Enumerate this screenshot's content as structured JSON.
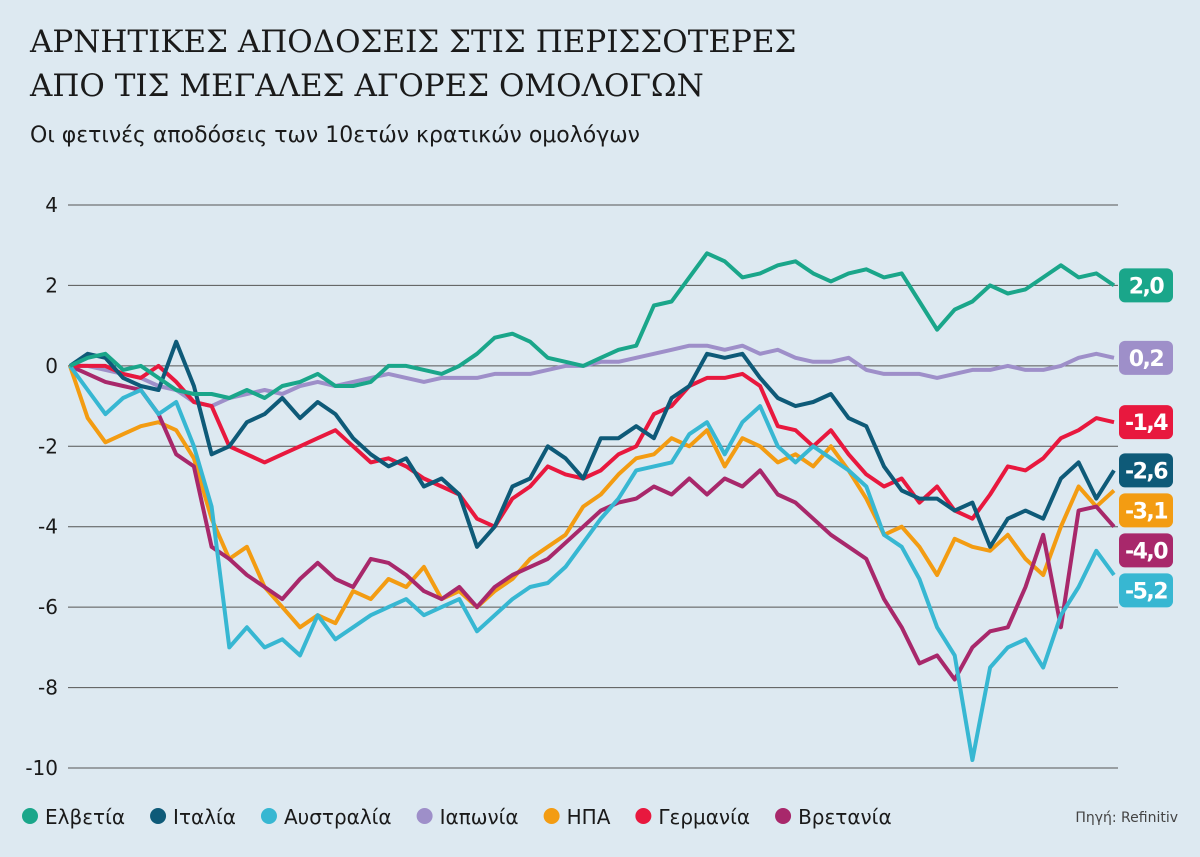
{
  "chart_data": {
    "type": "line",
    "title": "ΑΡΝΗΤΙΚΕΣ ΑΠΟΔΟΣΕΙΣ ΣΤΙΣ ΠΕΡΙΣΣΟΤΕΡΕΣ",
    "title_line2": "ΑΠΟ ΤΙΣ ΜΕΓΑΛΕΣ ΑΓΟΡΕΣ ΟΜΟΛΟΓΩΝ",
    "subtitle": "Οι φετινές αποδόσεις των 10ετών κρατικών ομολόγων",
    "source": "Πηγή: Refinitiv",
    "ylim": [
      -10,
      4.2
    ],
    "yticks": [
      4,
      2,
      0,
      -2,
      -4,
      -6,
      -8,
      -10
    ],
    "grid": true,
    "series": [
      {
        "name": "Ελβετία",
        "color": "#1aa68a",
        "values": [
          0,
          0.2,
          0.3,
          -0.1,
          0,
          -0.3,
          -0.6,
          -0.7,
          -0.7,
          -0.8,
          -0.6,
          -0.8,
          -0.5,
          -0.4,
          -0.2,
          -0.5,
          -0.5,
          -0.4,
          0,
          0,
          -0.1,
          -0.2,
          0,
          0.3,
          0.7,
          0.8,
          0.6,
          0.2,
          0.1,
          0,
          0.2,
          0.4,
          0.5,
          1.5,
          1.6,
          2.2,
          2.8,
          2.6,
          2.2,
          2.3,
          2.5,
          2.6,
          2.3,
          2.1,
          2.3,
          2.4,
          2.2,
          2.3,
          1.6,
          0.9,
          1.4,
          1.6,
          2.0,
          1.8,
          1.9,
          2.2,
          2.5,
          2.2,
          2.3,
          2.0
        ],
        "value_labels": [
          null,
          null,
          null,
          null,
          null,
          null,
          null,
          null,
          null,
          null,
          null,
          null,
          null,
          null,
          null,
          null,
          null,
          null,
          null,
          null,
          null,
          null,
          null,
          null,
          null,
          null,
          null,
          null,
          null,
          null,
          null,
          null,
          null,
          null,
          null,
          null,
          null,
          null,
          null,
          null,
          null,
          null,
          null,
          null,
          null,
          null,
          null,
          null,
          null,
          null,
          null,
          null,
          null,
          null,
          null,
          null,
          null,
          null,
          null,
          "2,0"
        ]
      },
      {
        "name": "Ιταλία",
        "color": "#0e5a78",
        "values": [
          0,
          0.3,
          0.2,
          -0.3,
          -0.5,
          -0.6,
          0.6,
          -0.5,
          -2.2,
          -2.0,
          -1.4,
          -1.2,
          -0.8,
          -1.3,
          -0.9,
          -1.2,
          -1.8,
          -2.2,
          -2.5,
          -2.3,
          -3.0,
          -2.8,
          -3.2,
          -4.5,
          -4.0,
          -3.0,
          -2.8,
          -2.0,
          -2.3,
          -2.8,
          -1.8,
          -1.8,
          -1.5,
          -1.8,
          -0.8,
          -0.5,
          0.3,
          0.2,
          0.3,
          -0.3,
          -0.8,
          -1.0,
          -0.9,
          -0.7,
          -1.3,
          -1.5,
          -2.5,
          -3.1,
          -3.3,
          -3.3,
          -3.6,
          -3.4,
          -4.5,
          -3.8,
          -3.6,
          -3.8,
          -2.8,
          -2.4,
          -3.3,
          -2.6
        ],
        "value_labels": [
          null,
          null,
          null,
          null,
          null,
          null,
          null,
          null,
          null,
          null,
          null,
          null,
          null,
          null,
          null,
          null,
          null,
          null,
          null,
          null,
          null,
          null,
          null,
          null,
          null,
          null,
          null,
          null,
          null,
          null,
          null,
          null,
          null,
          null,
          null,
          null,
          null,
          null,
          null,
          null,
          null,
          null,
          null,
          null,
          null,
          null,
          null,
          null,
          null,
          null,
          null,
          null,
          null,
          null,
          null,
          null,
          null,
          null,
          null,
          "-2,6"
        ]
      },
      {
        "name": "Αυστραλία",
        "color": "#37b7d2",
        "values": [
          0,
          -0.6,
          -1.2,
          -0.8,
          -0.6,
          -1.2,
          -0.9,
          -2.0,
          -3.5,
          -7.0,
          -6.5,
          -7.0,
          -6.8,
          -7.2,
          -6.2,
          -6.8,
          -6.5,
          -6.2,
          -6.0,
          -5.8,
          -6.2,
          -6.0,
          -5.8,
          -6.6,
          -6.2,
          -5.8,
          -5.5,
          -5.4,
          -5.0,
          -4.4,
          -3.8,
          -3.3,
          -2.6,
          -2.5,
          -2.4,
          -1.7,
          -1.4,
          -2.2,
          -1.4,
          -1.0,
          -2.0,
          -2.4,
          -2.0,
          -2.3,
          -2.6,
          -3.0,
          -4.2,
          -4.5,
          -5.3,
          -6.5,
          -7.2,
          -9.8,
          -7.5,
          -7.0,
          -6.8,
          -7.5,
          -6.2,
          -5.5,
          -4.6,
          -5.2
        ],
        "value_labels": [
          null,
          null,
          null,
          null,
          null,
          null,
          null,
          null,
          null,
          null,
          null,
          null,
          null,
          null,
          null,
          null,
          null,
          null,
          null,
          null,
          null,
          null,
          null,
          null,
          null,
          null,
          null,
          null,
          null,
          null,
          null,
          null,
          null,
          null,
          null,
          null,
          null,
          null,
          null,
          null,
          null,
          null,
          null,
          null,
          null,
          null,
          null,
          null,
          null,
          null,
          null,
          null,
          null,
          null,
          null,
          null,
          null,
          null,
          null,
          "-5,2"
        ]
      },
      {
        "name": "Ιαπωνία",
        "color": "#9e8fc9",
        "values": [
          0,
          0,
          -0.1,
          -0.2,
          -0.3,
          -0.5,
          -0.6,
          -0.9,
          -1.0,
          -0.8,
          -0.7,
          -0.6,
          -0.7,
          -0.5,
          -0.4,
          -0.5,
          -0.4,
          -0.3,
          -0.2,
          -0.3,
          -0.4,
          -0.3,
          -0.3,
          -0.3,
          -0.2,
          -0.2,
          -0.2,
          -0.1,
          0,
          0,
          0.1,
          0.1,
          0.2,
          0.3,
          0.4,
          0.5,
          0.5,
          0.4,
          0.5,
          0.3,
          0.4,
          0.2,
          0.1,
          0.1,
          0.2,
          -0.1,
          -0.2,
          -0.2,
          -0.2,
          -0.3,
          -0.2,
          -0.1,
          -0.1,
          0,
          -0.1,
          -0.1,
          0,
          0.2,
          0.3,
          0.2
        ],
        "value_labels": [
          null,
          null,
          null,
          null,
          null,
          null,
          null,
          null,
          null,
          null,
          null,
          null,
          null,
          null,
          null,
          null,
          null,
          null,
          null,
          null,
          null,
          null,
          null,
          null,
          null,
          null,
          null,
          null,
          null,
          null,
          null,
          null,
          null,
          null,
          null,
          null,
          null,
          null,
          null,
          null,
          null,
          null,
          null,
          null,
          null,
          null,
          null,
          null,
          null,
          null,
          null,
          null,
          null,
          null,
          null,
          null,
          null,
          null,
          null,
          "0,2"
        ]
      },
      {
        "name": "ΗΠΑ",
        "color": "#f39c12",
        "values": [
          0,
          -1.3,
          -1.9,
          -1.7,
          -1.5,
          -1.4,
          -1.6,
          -2.3,
          -3.8,
          -4.8,
          -4.5,
          -5.5,
          -6.0,
          -6.5,
          -6.2,
          -6.4,
          -5.6,
          -5.8,
          -5.3,
          -5.5,
          -5.0,
          -5.8,
          -5.6,
          -6.0,
          -5.6,
          -5.3,
          -4.8,
          -4.5,
          -4.2,
          -3.5,
          -3.2,
          -2.7,
          -2.3,
          -2.2,
          -1.8,
          -2.0,
          -1.6,
          -2.5,
          -1.8,
          -2.0,
          -2.4,
          -2.2,
          -2.5,
          -2.0,
          -2.6,
          -3.3,
          -4.2,
          -4.0,
          -4.5,
          -5.2,
          -4.3,
          -4.5,
          -4.6,
          -4.2,
          -4.8,
          -5.2,
          -4.0,
          -3.0,
          -3.5,
          -3.1
        ],
        "value_labels": [
          null,
          null,
          null,
          null,
          null,
          null,
          null,
          null,
          null,
          null,
          null,
          null,
          null,
          null,
          null,
          null,
          null,
          null,
          null,
          null,
          null,
          null,
          null,
          null,
          null,
          null,
          null,
          null,
          null,
          null,
          null,
          null,
          null,
          null,
          null,
          null,
          null,
          null,
          null,
          null,
          null,
          null,
          null,
          null,
          null,
          null,
          null,
          null,
          null,
          null,
          null,
          null,
          null,
          null,
          null,
          null,
          null,
          null,
          null,
          "-3,1"
        ]
      },
      {
        "name": "Γερμανία",
        "color": "#e8183e",
        "values": [
          0,
          0,
          0,
          -0.2,
          -0.3,
          0,
          -0.4,
          -0.9,
          -1.0,
          -2.0,
          -2.2,
          -2.4,
          -2.2,
          -2.0,
          -1.8,
          -1.6,
          -2.0,
          -2.4,
          -2.3,
          -2.5,
          -2.8,
          -3.0,
          -3.2,
          -3.8,
          -4.0,
          -3.3,
          -3.0,
          -2.5,
          -2.7,
          -2.8,
          -2.6,
          -2.2,
          -2.0,
          -1.2,
          -1.0,
          -0.5,
          -0.3,
          -0.3,
          -0.2,
          -0.5,
          -1.5,
          -1.6,
          -2.0,
          -1.6,
          -2.2,
          -2.7,
          -3.0,
          -2.8,
          -3.4,
          -3.0,
          -3.6,
          -3.8,
          -3.2,
          -2.5,
          -2.6,
          -2.3,
          -1.8,
          -1.6,
          -1.3,
          -1.4
        ],
        "value_labels": [
          null,
          null,
          null,
          null,
          null,
          null,
          null,
          null,
          null,
          null,
          null,
          null,
          null,
          null,
          null,
          null,
          null,
          null,
          null,
          null,
          null,
          null,
          null,
          null,
          null,
          null,
          null,
          null,
          null,
          null,
          null,
          null,
          null,
          null,
          null,
          null,
          null,
          null,
          null,
          null,
          null,
          null,
          null,
          null,
          null,
          null,
          null,
          null,
          null,
          null,
          null,
          null,
          null,
          null,
          null,
          null,
          null,
          null,
          null,
          "-1,4"
        ]
      },
      {
        "name": "Βρετανία",
        "color": "#a8286b",
        "values": [
          0,
          -0.2,
          -0.4,
          -0.5,
          -0.6,
          -1.2,
          -2.2,
          -2.5,
          -4.5,
          -4.8,
          -5.2,
          -5.5,
          -5.8,
          -5.3,
          -4.9,
          -5.3,
          -5.5,
          -4.8,
          -4.9,
          -5.2,
          -5.6,
          -5.8,
          -5.5,
          -6.0,
          -5.5,
          -5.2,
          -5.0,
          -4.8,
          -4.4,
          -4.0,
          -3.6,
          -3.4,
          -3.3,
          -3.0,
          -3.2,
          -2.8,
          -3.2,
          -2.8,
          -3.0,
          -2.6,
          -3.2,
          -3.4,
          -3.8,
          -4.2,
          -4.5,
          -4.8,
          -5.8,
          -6.5,
          -7.4,
          -7.2,
          -7.8,
          -7.0,
          -6.6,
          -6.5,
          -5.5,
          -4.2,
          -6.5,
          -3.6,
          -3.5,
          -4.0
        ],
        "value_labels": [
          null,
          null,
          null,
          null,
          null,
          null,
          null,
          null,
          null,
          null,
          null,
          null,
          null,
          null,
          null,
          null,
          null,
          null,
          null,
          null,
          null,
          null,
          null,
          null,
          null,
          null,
          null,
          null,
          null,
          null,
          null,
          null,
          null,
          null,
          null,
          null,
          null,
          null,
          null,
          null,
          null,
          null,
          null,
          null,
          null,
          null,
          null,
          null,
          null,
          null,
          null,
          null,
          null,
          null,
          null,
          null,
          null,
          null,
          null,
          "-4,0"
        ]
      }
    ]
  }
}
